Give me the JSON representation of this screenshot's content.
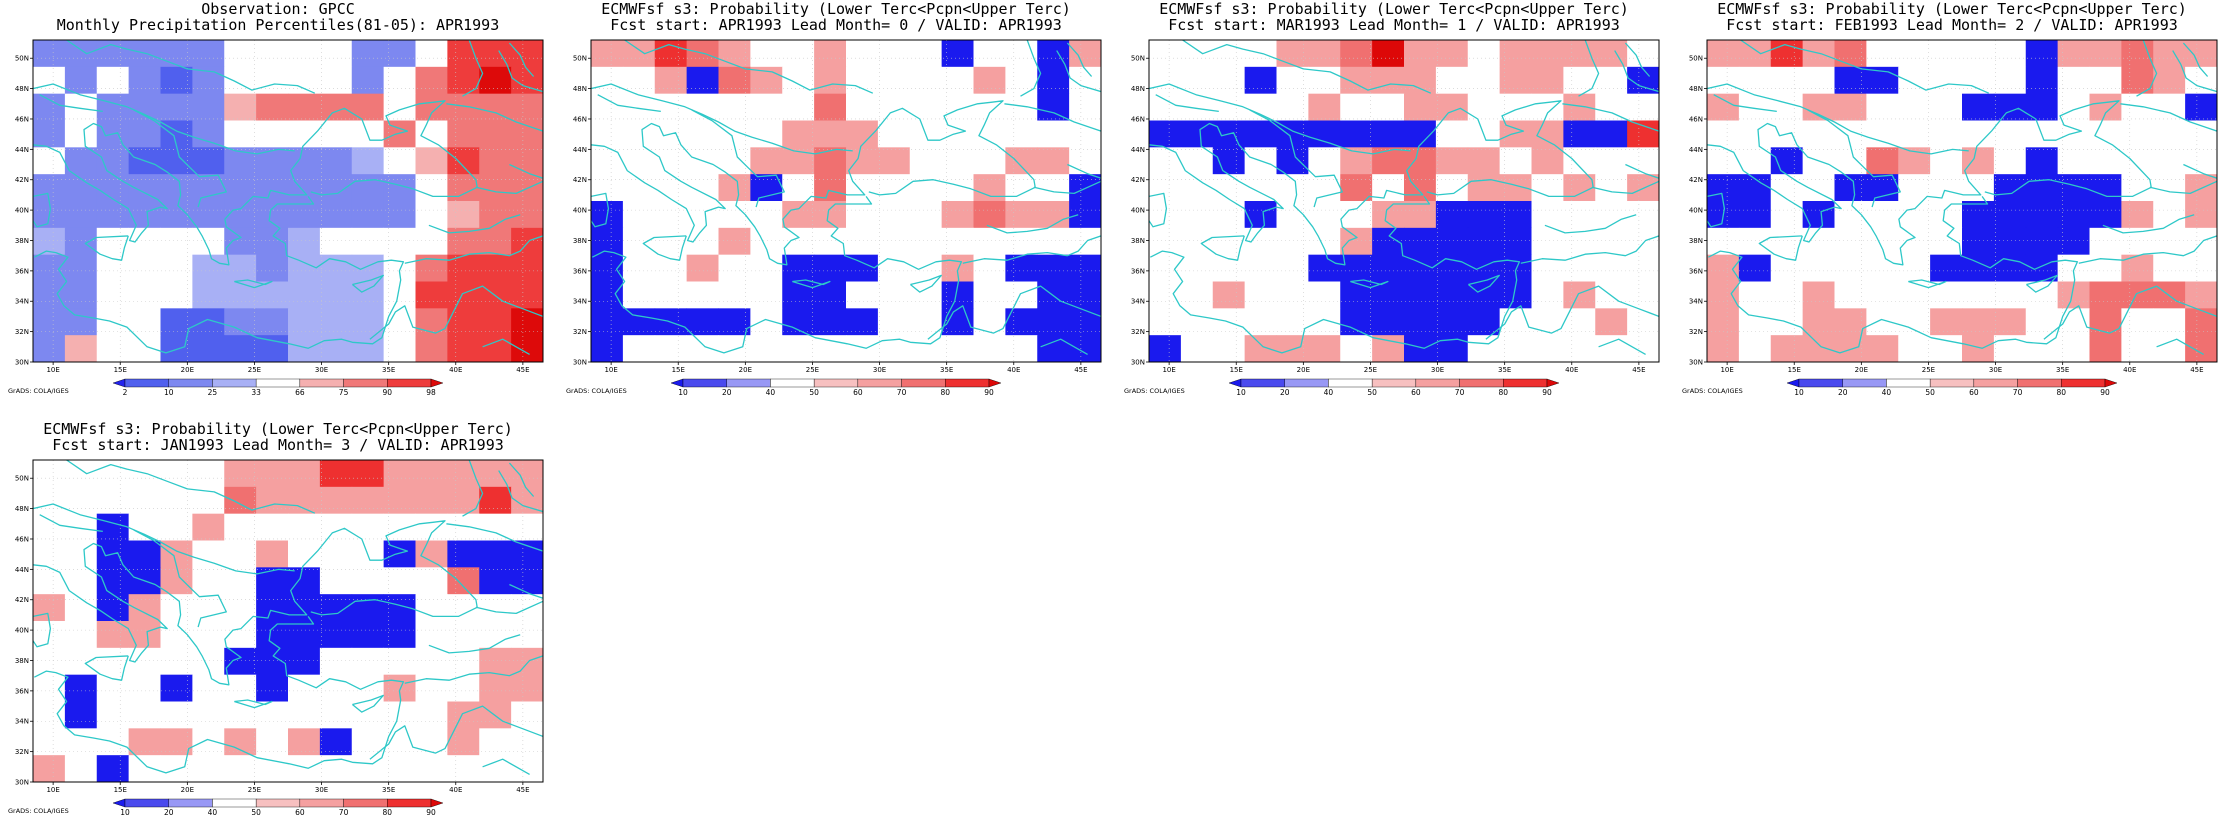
{
  "figure": {
    "credit": "GrADS: COLA/IGES",
    "x_ticks": [
      "10E",
      "15E",
      "20E",
      "25E",
      "30E",
      "35E",
      "40E",
      "45E"
    ],
    "y_ticks": [
      "30N",
      "32N",
      "34N",
      "36N",
      "38N",
      "40N",
      "42N",
      "44N",
      "46N",
      "48N",
      "50N"
    ],
    "lon_range": [
      8.5,
      46.5
    ],
    "lat_range": [
      30,
      51.2
    ],
    "coastline_color": "#2ec8c8",
    "grid": "dotted"
  },
  "panels": [
    {
      "id": "obs",
      "title_line1": "Observation: GPCC",
      "title_line2": "Monthly Precipitation Percentiles(81-05): APR1993",
      "colorbar": {
        "labels": [
          "2",
          "10",
          "25",
          "33",
          "66",
          "75",
          "90",
          "98"
        ],
        "colors": [
          "#2222ee",
          "#5060ee",
          "#7d88f0",
          "#a8b0f5",
          "#ffffff",
          "#f5b0b0",
          "#f07878",
          "#ee3c3c",
          "#dd0a0a"
        ]
      },
      "legend": {
        "-3": "#2222ee",
        "-2": "#5060ee",
        "-1": "#7d88f0",
        "-0.5": "#a8b0f5",
        "0": "#ffffff",
        "0.5": "#f5b0b0",
        "1": "#f07878",
        "2": "#ee3c3c",
        "3": "#dd0a0a"
      },
      "cells": [
        "-1 -1 -1 -1 -1 -1 0 0 0 0 -1 -1 0 2 2 2",
        "0 -1 0 -1 -2 -1 0 0 0 0 -1 0 1 2 3 2",
        "-1 0 -1 -1 -1 -1 0.5 1 1 1 1 0 1 1 1 1",
        "-1 0 -1 -1 -2 -1 0 0 0 0 0 1 0 1 1 1",
        "0 -1 -1 -2 -2 -2 -1 -1 -1 -1 -0.5 0 0.5 2 1 1",
        "-1 -1 -1 -1 -1 -1 -1 -1 -1 -1 -1 -1 0 1 1 1",
        "-1 -1 -1 -1 -1 -1 -1 -1 -1 -1 -1 -1 0 0.5 1 1",
        "-0.5 -1 0 0 0 0 -1 -1 -0.5 0 0 0 0 1 1 2",
        "-1 -1 0 0 0 -0.5 -0.5 -1 -0.5 -0.5 -0.5 0 1 2 2 2",
        "-1 -1 0 0 0 -0.5 -0.5 -0.5 -0.5 -0.5 -0.5 0 2 2 2 2",
        "-1 -1 0 0 -2 -2 -1 -1 -0.5 -0.5 -0.5 0 1 2 2 3",
        "-1 0.5 0 0 -2 -2 -2 -2 -0.5 -0.5 -0.5 0 1 2 2 3"
      ]
    },
    {
      "id": "lead0",
      "title_line1": "ECMWFsf s3: Probability (Lower Terc<Pcpn<Upper Terc)",
      "title_line2": "Fcst start: APR1993  Lead Month= 0 / VALID: APR1993",
      "colorbar": {
        "labels": [
          "10",
          "20",
          "40",
          "50",
          "60",
          "70",
          "80",
          "90"
        ],
        "colors": [
          "#1a1aee",
          "#4a4aee",
          "#9898f5",
          "#ffffff",
          "#f7c0c0",
          "#f5a0a0",
          "#f07070",
          "#ee3030",
          "#dd0808"
        ]
      },
      "legend": {
        "-2": "#1a1aee",
        "-1": "#4a4aee",
        "-0.5": "#9898f5",
        "0": "#ffffff",
        "0.5": "#f7c0c0",
        "1": "#f5a0a0",
        "2": "#f07070",
        "3": "#ee3030",
        "4": "#dd0808"
      },
      "cells": [
        "1 1 3 2 1 0 0 1 0 0 0 -2 0 0 -2 1",
        "0 0 1 -2 2 1 0 1 0 0 0 0 1 0 -2 0",
        "0 0 0 0 0 0 0 2 0 0 0 0 0 0 -2 0",
        "0 0 0 0 0 0 1 1 1 0 0 0 0 0 0 0",
        "0 0 0 0 0 1 1 2 1 1 0 0 0 1 1 0",
        "0 0 0 0 1 -2 0 2 0 0 0 0 1 0 0 -2",
        "-2 0 0 0 0 0 1 1 0 0 0 1 2 1 1 -2",
        "-2 0 0 0 1 0 0 0 0 0 0 0 0 0 0 0",
        "-2 0 0 1 0 0 -2 -2 -2 0 0 1 0 -2 -2 -2",
        "-2 0 0 0 0 0 -2 -2 0 0 0 -2 0 0 -2 -2",
        "-2 -2 -2 -2 -2 0 -2 -2 -2 0 0 -2 0 -2 -2 -2",
        "-2 0 0 0 0 0 0 0 0 0 0 0 0 0 -2 -2"
      ]
    },
    {
      "id": "lead1",
      "title_line1": "ECMWFsf s3: Probability (Lower Terc<Pcpn<Upper Terc)",
      "title_line2": "Fcst start: MAR1993  Lead Month= 1 / VALID: APR1993",
      "colorbar": {
        "labels": [
          "10",
          "20",
          "40",
          "50",
          "60",
          "70",
          "80",
          "90"
        ],
        "colors": [
          "#1a1aee",
          "#4a4aee",
          "#9898f5",
          "#ffffff",
          "#f7c0c0",
          "#f5a0a0",
          "#f07070",
          "#ee3030",
          "#dd0808"
        ]
      },
      "legend": {
        "-2": "#1a1aee",
        "-1": "#4a4aee",
        "-0.5": "#9898f5",
        "0": "#ffffff",
        "0.5": "#f7c0c0",
        "1": "#f5a0a0",
        "2": "#f07070",
        "3": "#ee3030",
        "4": "#dd0808"
      },
      "cells": [
        "0 0 0 0 1 1 2 4 1 1 0 1 1 1 1 0",
        "0 0 0 -2 0 0 1 1 1 0 0 1 1 0 0 -2",
        "0 0 0 0 0 1 0 0 1 1 0 0 0 1 0 0",
        "-2 -2 -2 -2 -2 -2 -2 -2 -2 0 0 1 1 -2 -2 3",
        "0 0 -2 0 -2 0 1 2 2 1 1 0 1 0 0 0",
        "0 0 0 0 0 0 2 0 2 0 1 1 0 1 0 1",
        "0 0 0 -2 0 0 0 1 1 -2 -2 -2 0 0 0 0",
        "0 0 0 0 0 0 1 -2 -2 -2 -2 -2 0 0 0 0",
        "0 0 0 0 0 -2 -2 -2 -2 -2 -2 -2 0 0 0 0",
        "0 0 1 0 0 0 -2 -2 -2 -2 -2 -2 0 1 0 0",
        "0 0 0 0 0 0 -2 -2 -2 -2 -2 0 0 0 1 0",
        "-2 0 0 1 1 1 0 1 -2 -2 0 0 0 0 0 0"
      ]
    },
    {
      "id": "lead2",
      "title_line1": "ECMWFsf s3: Probability (Lower Terc<Pcpn<Upper Terc)",
      "title_line2": "Fcst start: FEB1993  Lead Month= 2 / VALID: APR1993",
      "colorbar": {
        "labels": [
          "10",
          "20",
          "40",
          "50",
          "60",
          "70",
          "80",
          "90"
        ],
        "colors": [
          "#1a1aee",
          "#4a4aee",
          "#9898f5",
          "#ffffff",
          "#f7c0c0",
          "#f5a0a0",
          "#f07070",
          "#ee3030",
          "#dd0808"
        ]
      },
      "legend": {
        "-2": "#1a1aee",
        "-1": "#4a4aee",
        "-0.5": "#9898f5",
        "0": "#ffffff",
        "0.5": "#f7c0c0",
        "1": "#f5a0a0",
        "2": "#f07070",
        "3": "#ee3030",
        "4": "#dd0808"
      },
      "cells": [
        "1 1 3 1 2 0 0 0 0 0 -2 1 1 2 1 1",
        "0 0 0 0 -2 -2 0 0 0 0 -2 0 0 2 1 0",
        "1 0 0 1 1 0 0 0 -2 -2 -2 0 1 0 0 -2",
        "0 0 0 0 0 0 0 0 0 0 0 0 0 0 0 0",
        "0 0 -2 0 0 2 1 0 1 0 -2 0 0 0 0 0",
        "-2 -2 0 0 -2 -2 0 0 0 -2 -2 -2 -2 0 0 1",
        "-2 -2 0 -2 0 0 0 0 -2 -2 -2 -2 -2 1 0 1",
        "0 0 0 0 0 0 0 0 -2 -2 -2 -2 0 0 0 0",
        "1 -2 0 0 0 0 0 -2 -2 -2 -2 0 0 1 0 0",
        "1 0 0 1 0 0 0 0 0 0 0 1 2 2 2 1",
        "1 0 0 1 1 0 0 1 1 1 0 0 2 0 0 2",
        "1 0 1 1 1 1 0 0 1 0 0 0 2 0 0 2"
      ]
    },
    {
      "id": "lead3",
      "title_line1": "ECMWFsf s3: Probability (Lower Terc<Pcpn<Upper Terc)",
      "title_line2": "Fcst start: JAN1993  Lead Month= 3 / VALID: APR1993",
      "colorbar": {
        "labels": [
          "10",
          "20",
          "40",
          "50",
          "60",
          "70",
          "80",
          "90"
        ],
        "colors": [
          "#1a1aee",
          "#4a4aee",
          "#9898f5",
          "#ffffff",
          "#f7c0c0",
          "#f5a0a0",
          "#f07070",
          "#ee3030",
          "#dd0808"
        ]
      },
      "legend": {
        "-2": "#1a1aee",
        "-1": "#4a4aee",
        "-0.5": "#9898f5",
        "0": "#ffffff",
        "0.5": "#f7c0c0",
        "1": "#f5a0a0",
        "2": "#f07070",
        "3": "#ee3030",
        "4": "#dd0808"
      },
      "cells": [
        "0 0 0 0 0 0 1 1 1 3 3 1 1 1 1 1",
        "0 0 0 0 0 0 2 1 1 1 1 1 1 1 3 1",
        "0 0 -2 0 0 1 0 0 0 0 0 0 0 0 0 0",
        "0 0 -2 -2 1 0 0 1 0 0 0 -2 1 -2 -2 -2",
        "0 0 -2 -2 1 0 0 -2 -2 0 0 0 0 2 -2 -2",
        "1 0 -2 1 0 0 0 -2 -2 -2 -2 -2 0 0 0 0",
        "0 0 1 1 0 0 0 -2 -2 -2 -2 -2 0 0 0 0",
        "0 0 0 0 0 0 -2 -2 -2 0 0 0 0 0 1 1",
        "0 -2 0 0 -2 0 0 -2 0 0 0 1 0 0 1 1",
        "0 -2 0 0 0 0 0 0 0 0 0 0 0 1 1 0",
        "0 0 0 1 1 0 1 0 1 -2 0 0 0 1 0 0",
        "1 0 -2 0 0 0 0 0 0 0 0 0 0 0 0 0"
      ]
    }
  ]
}
